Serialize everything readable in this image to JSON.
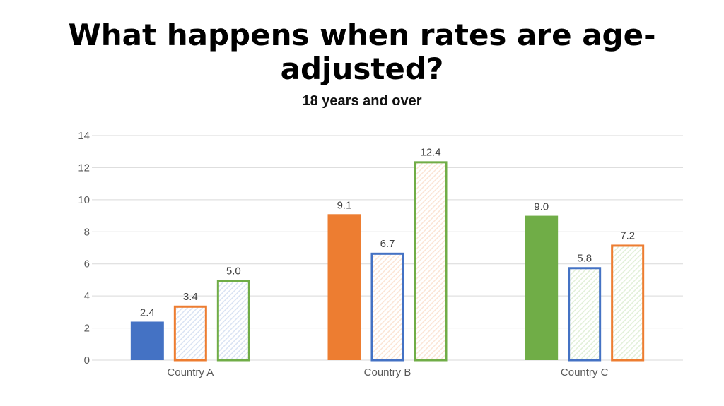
{
  "title": "What happens when rates are age-adjusted?",
  "chart_data": {
    "type": "bar",
    "title": "What happens when rates are age-adjusted?",
    "subtitle": "18 years and over",
    "xlabel": "",
    "ylabel": "",
    "categories": [
      "Country A",
      "Country B",
      "Country C"
    ],
    "ylim": [
      0,
      14
    ],
    "yticks": [
      0,
      2,
      4,
      6,
      8,
      10,
      12,
      14
    ],
    "grid": true,
    "legend": "none",
    "colors": {
      "blue": "#4472C4",
      "orange": "#ED7D31",
      "green": "#70AD47",
      "blue_light": "#DAE3F3",
      "orange_light": "#FBE5D6",
      "green_light": "#E2F0D9",
      "gridline": "#D9D9D9"
    },
    "groups": [
      {
        "category": "Country A",
        "bars": [
          {
            "value": 2.4,
            "label": "2.4",
            "style": "solid",
            "color": "blue"
          },
          {
            "value": 3.4,
            "label": "3.4",
            "style": "hatched",
            "fill": "blue_light",
            "outline": "orange"
          },
          {
            "value": 5.0,
            "label": "5.0",
            "style": "hatched",
            "fill": "blue_light",
            "outline": "green"
          }
        ]
      },
      {
        "category": "Country B",
        "bars": [
          {
            "value": 9.1,
            "label": "9.1",
            "style": "solid",
            "color": "orange"
          },
          {
            "value": 6.7,
            "label": "6.7",
            "style": "hatched",
            "fill": "orange_light",
            "outline": "blue"
          },
          {
            "value": 12.4,
            "label": "12.4",
            "style": "hatched",
            "fill": "orange_light",
            "outline": "green"
          }
        ]
      },
      {
        "category": "Country C",
        "bars": [
          {
            "value": 9.0,
            "label": "9.0",
            "style": "solid",
            "color": "green"
          },
          {
            "value": 5.8,
            "label": "5.8",
            "style": "hatched",
            "fill": "green_light",
            "outline": "blue"
          },
          {
            "value": 7.2,
            "label": "7.2",
            "style": "hatched",
            "fill": "green_light",
            "outline": "orange"
          }
        ]
      }
    ]
  }
}
